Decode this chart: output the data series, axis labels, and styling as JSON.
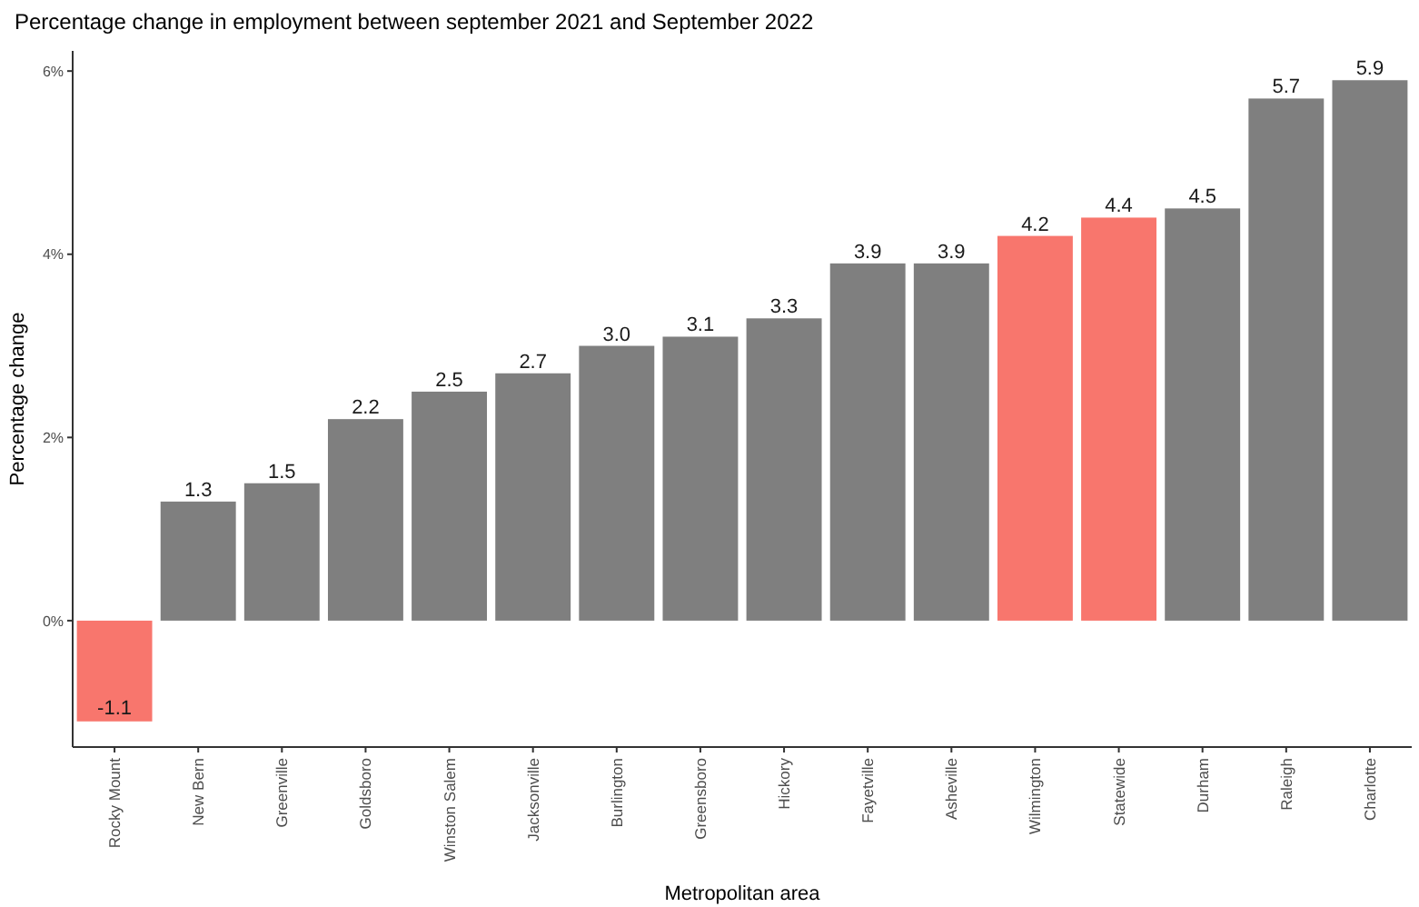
{
  "chart_data": {
    "type": "bar",
    "title": "Percentage change in employment between september 2021 and September 2022",
    "xlabel": "Metropolitan area",
    "ylabel": "Percentage change",
    "categories": [
      "Rocky Mount",
      "New Bern",
      "Greenville",
      "Goldsboro",
      "Winston Salem",
      "Jacksonville",
      "Burlington",
      "Greensboro",
      "Hickory",
      "Fayetville",
      "Asheville",
      "Wilmington",
      "Statewide",
      "Durham",
      "Raleigh",
      "Charlotte"
    ],
    "values": [
      -1.1,
      1.3,
      1.5,
      2.2,
      2.5,
      2.7,
      3.0,
      3.1,
      3.3,
      3.9,
      3.9,
      4.2,
      4.4,
      4.5,
      5.7,
      5.9
    ],
    "colors": [
      "#f8766d",
      "#7f7f7f",
      "#7f7f7f",
      "#7f7f7f",
      "#7f7f7f",
      "#7f7f7f",
      "#7f7f7f",
      "#7f7f7f",
      "#7f7f7f",
      "#7f7f7f",
      "#7f7f7f",
      "#f8766d",
      "#f8766d",
      "#7f7f7f",
      "#7f7f7f",
      "#7f7f7f"
    ],
    "ylim": [
      -1.38,
      6.22
    ],
    "yticks": [
      {
        "value": 0,
        "label": "0%"
      },
      {
        "value": 2,
        "label": "2%"
      },
      {
        "value": 4,
        "label": "4%"
      },
      {
        "value": 6,
        "label": "6%"
      }
    ],
    "value_labels": [
      "-1.1",
      "1.3",
      "1.5",
      "2.2",
      "2.5",
      "2.7",
      "3.0",
      "3.1",
      "3.3",
      "3.9",
      "3.9",
      "4.2",
      "4.4",
      "4.5",
      "5.7",
      "5.9"
    ],
    "grid": false
  }
}
